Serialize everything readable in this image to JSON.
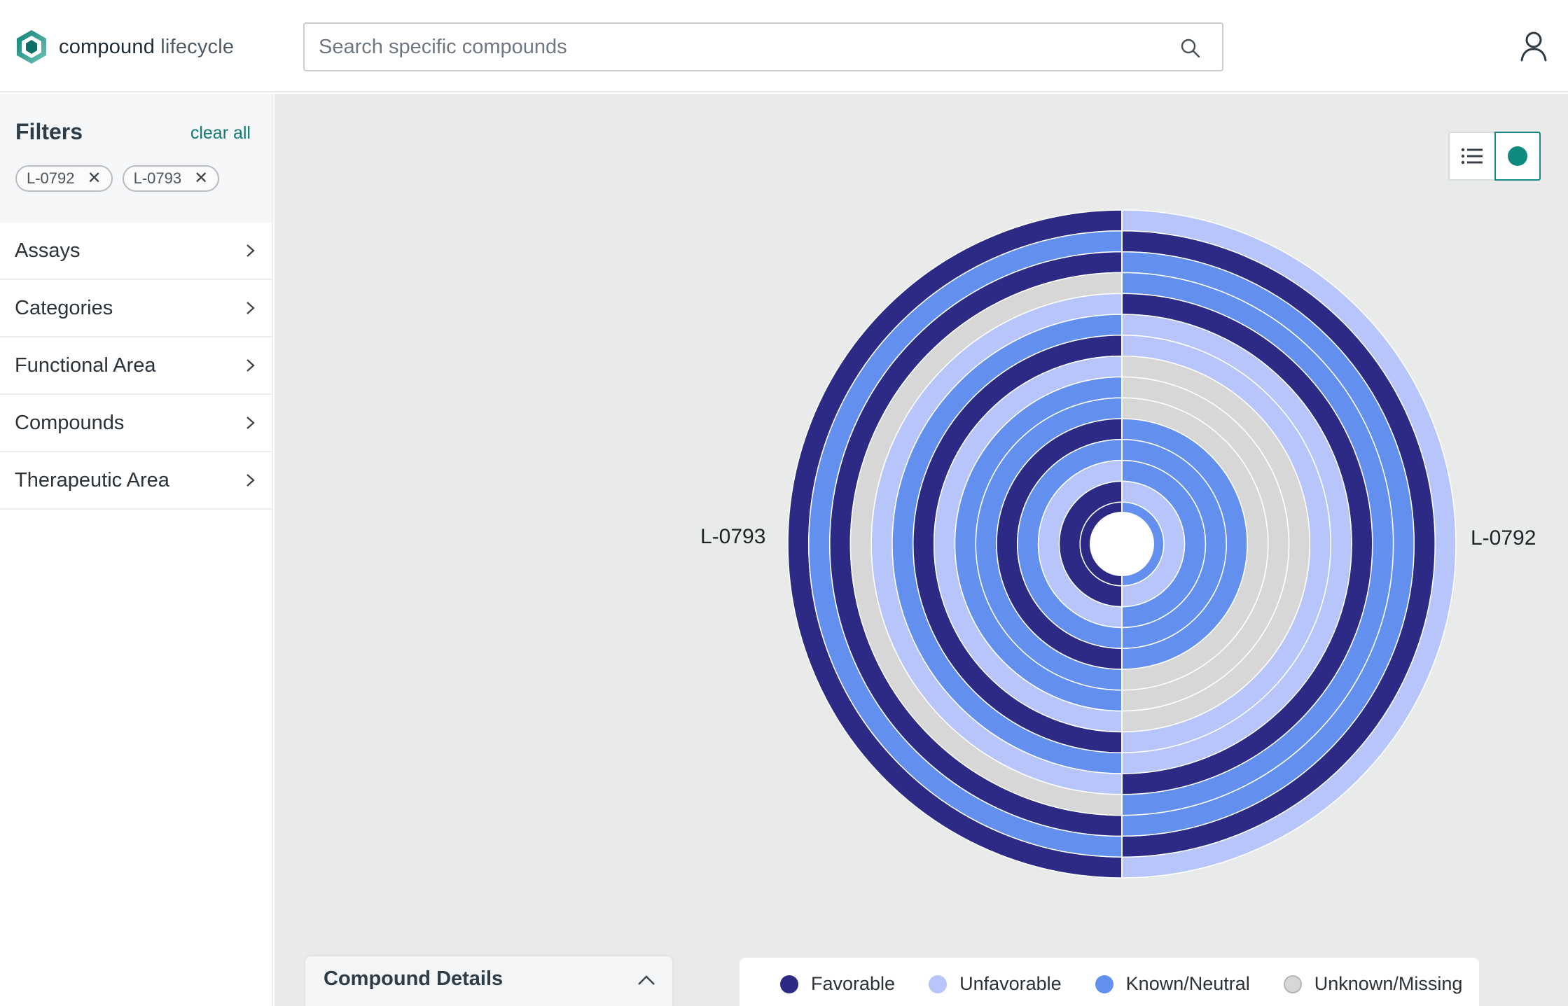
{
  "brand": {
    "name": "compound",
    "name_suffix": " lifecycle"
  },
  "search": {
    "placeholder": "Search specific compounds"
  },
  "filters": {
    "title": "Filters",
    "clear_label": "clear all",
    "chips": [
      "L-0792",
      "L-0793"
    ]
  },
  "nav": [
    {
      "label": "Assays"
    },
    {
      "label": "Categories"
    },
    {
      "label": "Functional Area"
    },
    {
      "label": "Compounds"
    },
    {
      "label": "Therapeutic Area"
    }
  ],
  "view_toggle": {
    "active": "chart"
  },
  "details": {
    "title": "Compound Details"
  },
  "legend": [
    {
      "label": "Favorable",
      "color": "#2c2a85"
    },
    {
      "label": "Unfavorable",
      "color": "#b8c5fa"
    },
    {
      "label": "Known/Neutral",
      "color": "#6390ee"
    },
    {
      "label": "Unknown/Missing",
      "color": "#d7d7d7"
    }
  ],
  "chart_data": {
    "type": "radial-ring",
    "left_label": "L-0793",
    "right_label": "L-0792",
    "categories_outer_to_inner": 15,
    "status_colors": {
      "favorable": "#2c2a85",
      "unfavorable": "#b8c5fa",
      "neutral": "#6390ee",
      "unknown": "#d7d7d7"
    },
    "series": [
      {
        "name": "L-0793",
        "values": [
          "favorable",
          "neutral",
          "favorable",
          "unknown",
          "unfavorable",
          "neutral",
          "favorable",
          "unfavorable",
          "neutral",
          "neutral",
          "favorable",
          "neutral",
          "unfavorable",
          "favorable",
          "center"
        ]
      },
      {
        "name": "L-0792",
        "values": [
          "unfavorable",
          "favorable",
          "neutral",
          "neutral",
          "favorable",
          "unfavorable",
          "unfavorable",
          "unknown",
          "unknown",
          "unknown",
          "neutral",
          "neutral",
          "neutral",
          "unfavorable",
          "neutral"
        ]
      }
    ]
  }
}
